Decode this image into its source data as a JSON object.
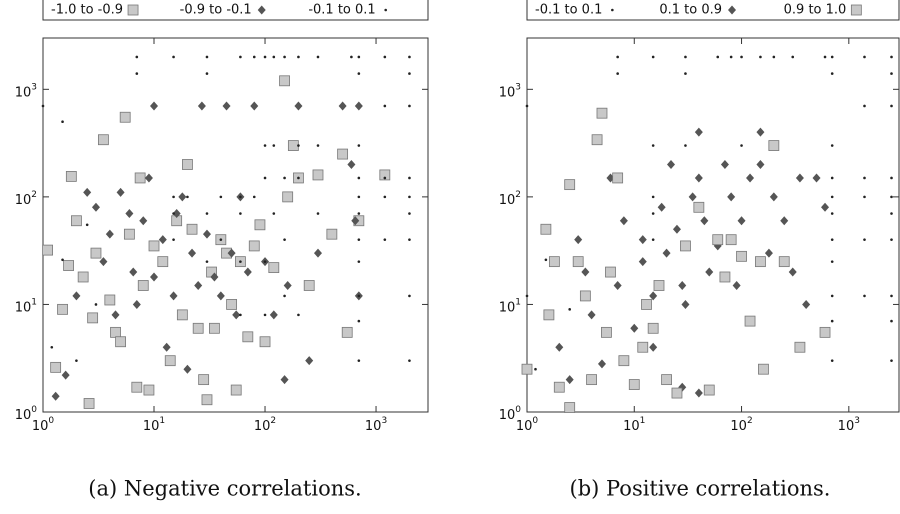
{
  "chart_data": [
    {
      "type": "scatter",
      "caption": "(a) Negative correlations.",
      "log_x": true,
      "log_y": true,
      "legend": "top",
      "xlim": [
        1,
        3000
      ],
      "ylim": [
        1,
        3000
      ],
      "xticks": [
        {
          "value": 1,
          "label": "10",
          "exp": "0"
        },
        {
          "value": 10,
          "label": "10",
          "exp": "1"
        },
        {
          "value": 100,
          "label": "10",
          "exp": "2"
        },
        {
          "value": 1000,
          "label": "10",
          "exp": "3"
        }
      ],
      "yticks": [
        {
          "value": 1,
          "label": "10",
          "exp": "0"
        },
        {
          "value": 10,
          "label": "10",
          "exp": "1"
        },
        {
          "value": 100,
          "label": "10",
          "exp": "2"
        },
        {
          "value": 1000,
          "label": "10",
          "exp": "3"
        }
      ],
      "series": [
        {
          "name": "-1.0 to -0.9",
          "color": "#c8c8c8",
          "marker": "square",
          "x": [
            1.1,
            1.3,
            1.5,
            1.7,
            1.8,
            2,
            2.3,
            2.6,
            2.8,
            3,
            3.5,
            4,
            4.5,
            5,
            5.5,
            6,
            7,
            7.5,
            8,
            9,
            10,
            12,
            14,
            16,
            18,
            20,
            22,
            25,
            28,
            30,
            33,
            35,
            40,
            45,
            50,
            55,
            60,
            70,
            80,
            90,
            100,
            120,
            150,
            160,
            180,
            200,
            250,
            300,
            400,
            500,
            550,
            700,
            1200
          ],
          "values": [
            32,
            2.6,
            9,
            23,
            155,
            60,
            18,
            1.2,
            7.5,
            30,
            340,
            11,
            5.5,
            4.5,
            550,
            45,
            1.7,
            150,
            15,
            1.6,
            35,
            25,
            3,
            60,
            8,
            200,
            50,
            6,
            2,
            1.3,
            20,
            6,
            40,
            30,
            10,
            1.6,
            25,
            5,
            35,
            55,
            4.5,
            22,
            1200,
            100,
            300,
            150,
            15,
            160,
            45,
            250,
            5.5,
            60,
            160
          ]
        },
        {
          "name": "-0.9 to -0.1",
          "color": "#555555",
          "marker": "diamond",
          "x": [
            1.3,
            1.6,
            2,
            2.5,
            3,
            3.5,
            4,
            4.5,
            5,
            6,
            6.5,
            7,
            8,
            9,
            10,
            10,
            12,
            13,
            15,
            16,
            18,
            20,
            22,
            25,
            27,
            30,
            35,
            40,
            45,
            50,
            55,
            60,
            70,
            80,
            100,
            120,
            150,
            160,
            200,
            250,
            300,
            500,
            600,
            650,
            700,
            700
          ],
          "values": [
            1.4,
            2.2,
            12,
            110,
            80,
            25,
            45,
            8,
            110,
            70,
            20,
            10,
            60,
            150,
            18,
            700,
            40,
            4,
            12,
            70,
            100,
            2.5,
            30,
            15,
            700,
            45,
            18,
            12,
            700,
            30,
            8,
            100,
            20,
            700,
            25,
            8,
            2,
            15,
            700,
            3,
            30,
            700,
            200,
            60,
            12,
            700
          ]
        },
        {
          "name": "-0.1 to 0.1",
          "color": "#222222",
          "marker": "dot",
          "x": [
            7,
            7,
            15,
            30,
            30,
            60,
            80,
            100,
            120,
            150,
            200,
            300,
            600,
            700,
            1200,
            2000,
            700,
            2000,
            1200,
            2000,
            1,
            1.5,
            100,
            120,
            200,
            300,
            700,
            100,
            150,
            200,
            700,
            1200,
            2000,
            15,
            20,
            40,
            60,
            80,
            700,
            1200,
            2000,
            15,
            30,
            60,
            120,
            300,
            700,
            2000,
            15,
            40,
            150,
            700,
            1200,
            2000,
            30,
            60,
            100,
            700,
            150,
            700,
            2000,
            60,
            100,
            200,
            700,
            1.2,
            2,
            3,
            700,
            2000,
            1.5,
            2.5
          ],
          "values": [
            2000,
            1400,
            2000,
            2000,
            1400,
            2000,
            2000,
            2000,
            2000,
            2000,
            2000,
            2000,
            2000,
            2000,
            2000,
            2000,
            1400,
            1400,
            700,
            700,
            700,
            500,
            300,
            300,
            300,
            300,
            300,
            150,
            150,
            150,
            150,
            150,
            150,
            100,
            100,
            100,
            100,
            100,
            100,
            100,
            100,
            70,
            70,
            70,
            70,
            70,
            70,
            70,
            40,
            40,
            40,
            40,
            40,
            40,
            25,
            25,
            25,
            25,
            12,
            12,
            12,
            8,
            8,
            8,
            7,
            4,
            3,
            10,
            3,
            3,
            26,
            55
          ]
        }
      ]
    },
    {
      "type": "scatter",
      "caption": "(b) Positive correlations.",
      "log_x": true,
      "log_y": true,
      "legend": "top",
      "xlim": [
        1,
        3000
      ],
      "ylim": [
        1,
        3000
      ],
      "xticks": [
        {
          "value": 1,
          "label": "10",
          "exp": "0"
        },
        {
          "value": 10,
          "label": "10",
          "exp": "1"
        },
        {
          "value": 100,
          "label": "10",
          "exp": "2"
        },
        {
          "value": 1000,
          "label": "10",
          "exp": "3"
        }
      ],
      "yticks": [
        {
          "value": 1,
          "label": "10",
          "exp": "0"
        },
        {
          "value": 10,
          "label": "10",
          "exp": "1"
        },
        {
          "value": 100,
          "label": "10",
          "exp": "2"
        },
        {
          "value": 1000,
          "label": "10",
          "exp": "3"
        }
      ],
      "series": [
        {
          "name": "-0.1 to 0.1",
          "color": "#222222",
          "marker": "dot",
          "x": [
            1,
            1.2,
            1.5,
            7,
            7,
            15,
            30,
            30,
            60,
            80,
            100,
            150,
            200,
            300,
            600,
            700,
            1400,
            2500,
            700,
            2500,
            1400,
            2500,
            1,
            15,
            30,
            100,
            700,
            700,
            1400,
            2500,
            15,
            700,
            1400,
            2500,
            15,
            700,
            2500,
            15,
            700,
            1400,
            2500,
            700,
            700,
            1400,
            2500,
            700,
            2500,
            700,
            2500,
            2.5
          ],
          "values": [
            12,
            2.5,
            26,
            2000,
            1400,
            2000,
            2000,
            1400,
            2000,
            2000,
            2000,
            2000,
            2000,
            2000,
            2000,
            2000,
            2000,
            2000,
            1400,
            1400,
            700,
            700,
            700,
            300,
            300,
            300,
            300,
            150,
            150,
            150,
            100,
            100,
            100,
            100,
            70,
            70,
            70,
            40,
            40,
            40,
            40,
            25,
            12,
            12,
            12,
            7,
            7,
            3,
            3,
            9
          ]
        },
        {
          "name": "0.1 to 0.9",
          "color": "#555555",
          "marker": "diamond",
          "x": [
            2,
            2.5,
            3,
            3.5,
            4,
            5,
            6,
            7,
            8,
            10,
            12,
            12,
            15,
            18,
            20,
            22,
            25,
            28,
            30,
            35,
            40,
            40,
            45,
            50,
            60,
            70,
            80,
            90,
            100,
            120,
            150,
            150,
            180,
            200,
            250,
            300,
            350,
            400,
            500,
            600,
            28,
            40,
            15
          ],
          "values": [
            4,
            2,
            40,
            20,
            8,
            2.8,
            150,
            15,
            60,
            6,
            25,
            40,
            12,
            80,
            30,
            200,
            50,
            15,
            10,
            100,
            150,
            400,
            60,
            20,
            35,
            200,
            100,
            15,
            60,
            150,
            200,
            400,
            30,
            100,
            60,
            20,
            150,
            10,
            150,
            80,
            1.7,
            1.5,
            4
          ]
        },
        {
          "name": "0.9 to 1.0",
          "color": "#c8c8c8",
          "marker": "square",
          "x": [
            1,
            1.5,
            1.6,
            1.8,
            2,
            2.5,
            2.5,
            3,
            3.5,
            4,
            4.5,
            5,
            5.5,
            6,
            7,
            8,
            10,
            12,
            13,
            15,
            17,
            20,
            25,
            30,
            40,
            50,
            60,
            70,
            80,
            100,
            120,
            150,
            160,
            200,
            250,
            350,
            600
          ],
          "values": [
            2.5,
            50,
            8,
            25,
            1.7,
            1.1,
            130,
            25,
            12,
            2,
            340,
            600,
            5.5,
            20,
            150,
            3,
            1.8,
            4,
            10,
            6,
            15,
            2,
            1.5,
            35,
            80,
            1.6,
            40,
            18,
            40,
            28,
            7,
            25,
            2.5,
            300,
            25,
            4,
            5.5
          ]
        }
      ]
    }
  ]
}
